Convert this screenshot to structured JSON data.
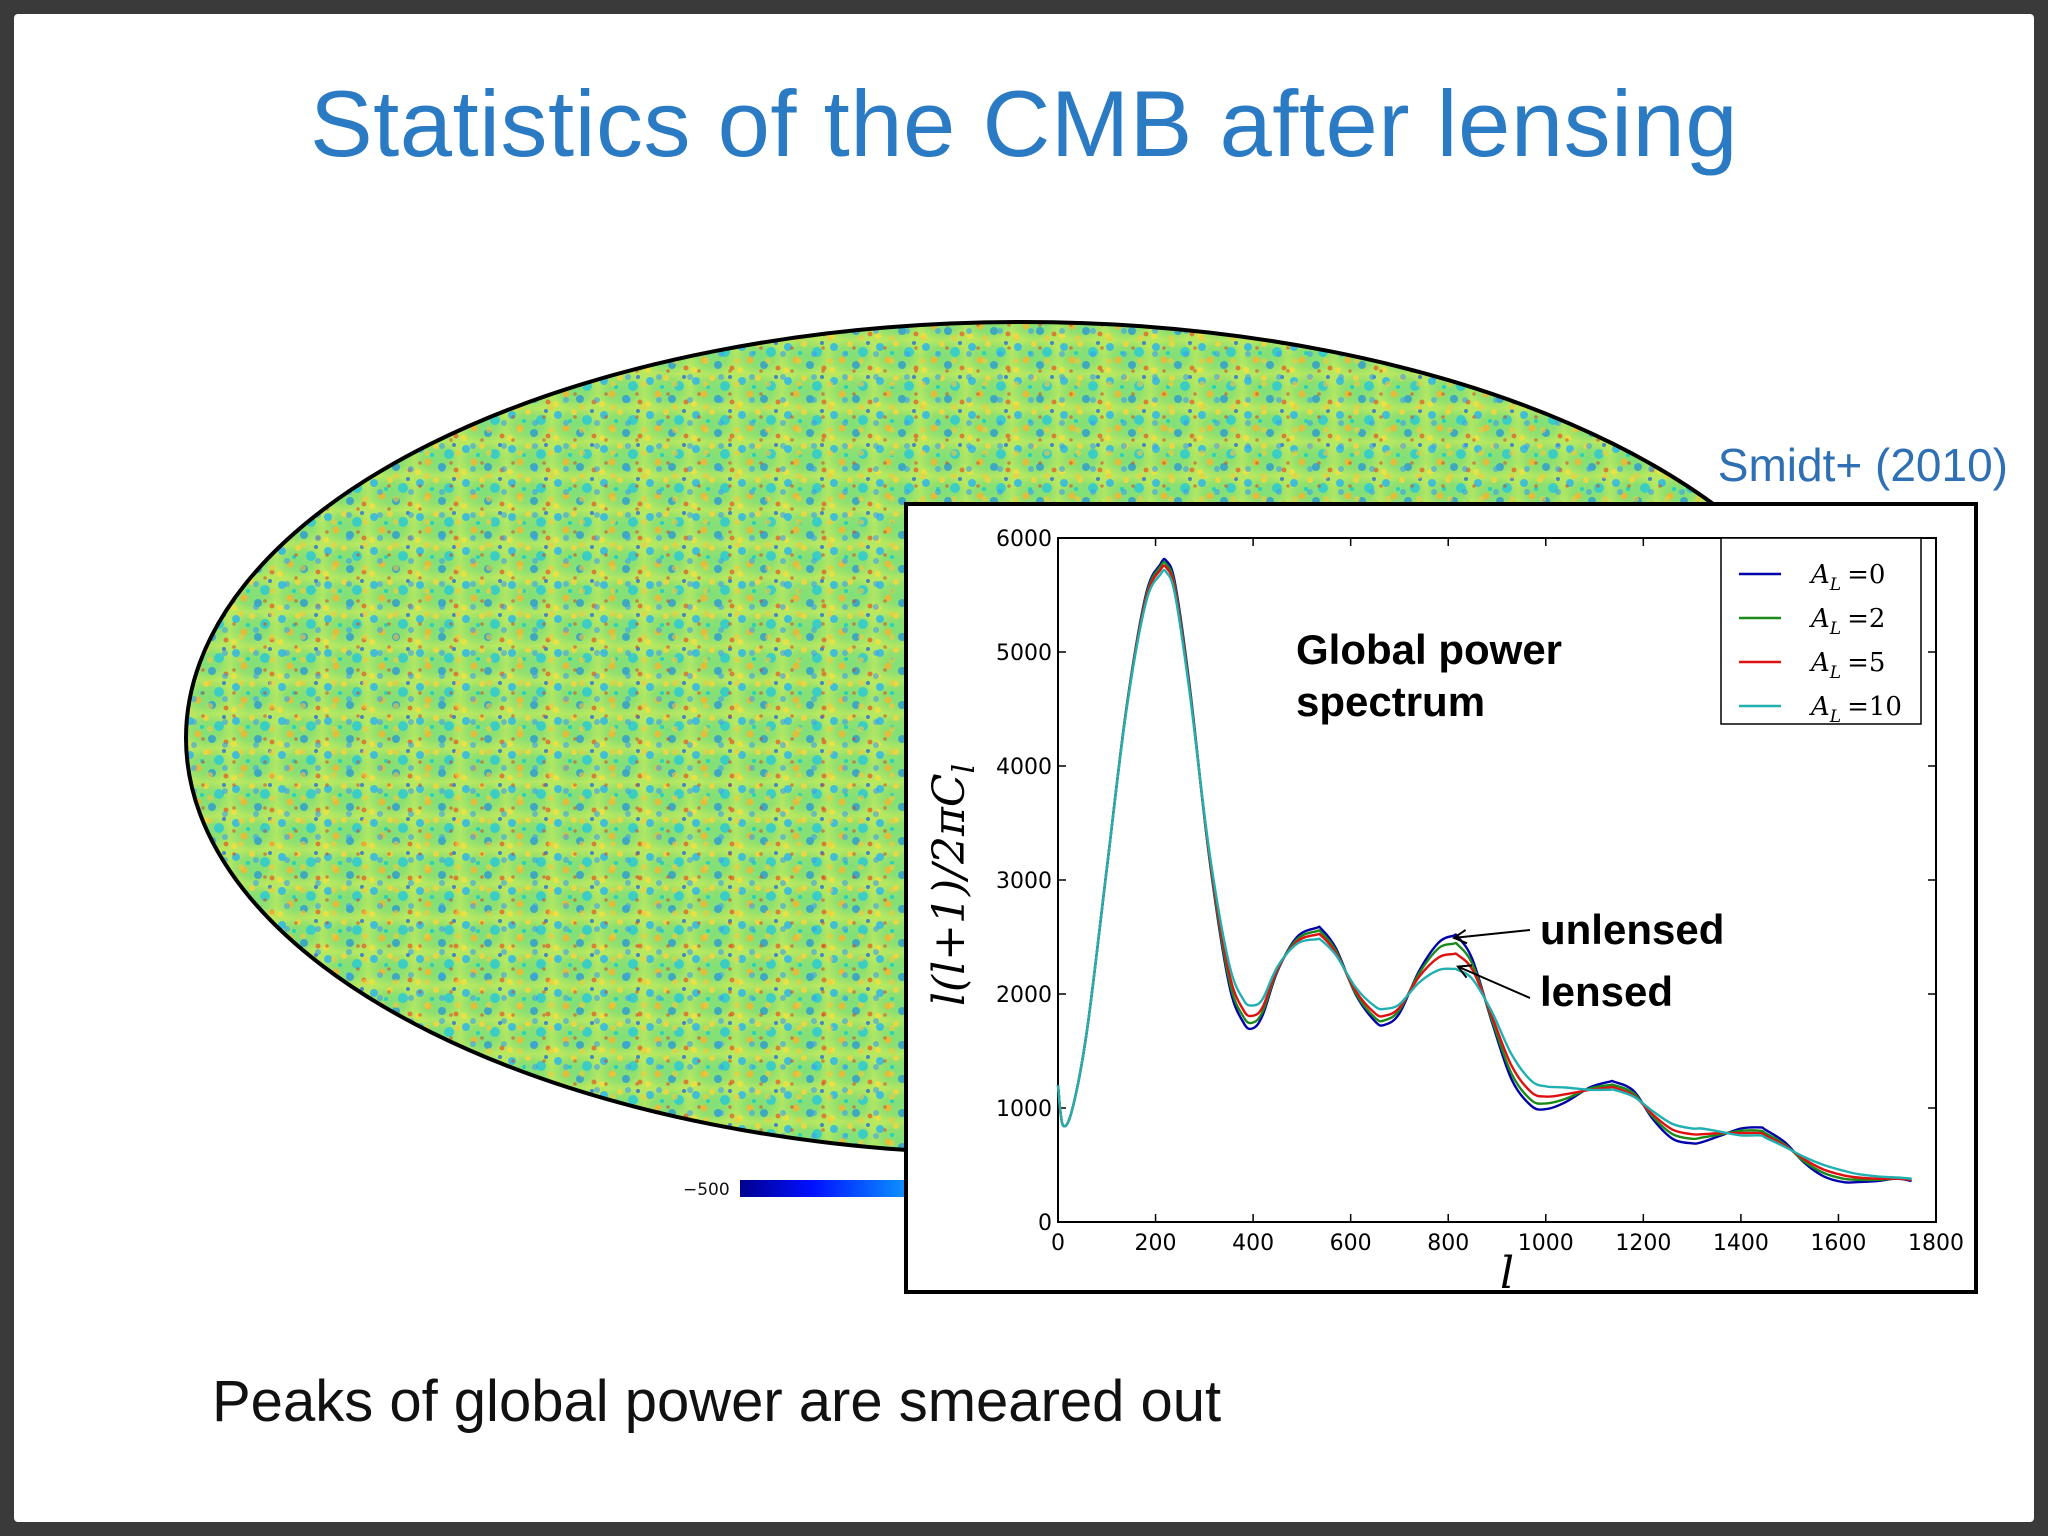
{
  "slide": {
    "title": "Statistics of the CMB after lensing",
    "citation": "Smidt+ (2010)",
    "caption": "Peaks of global power are smeared out",
    "colorbar_min_label": "−500"
  },
  "colors": {
    "title": "#2a7ac4",
    "AL0": "#0000aa",
    "AL2": "#1a8a1a",
    "AL5": "#e01010",
    "AL10": "#20b0b0"
  },
  "chart_data": {
    "type": "line",
    "xlabel": "l",
    "ylabel": "l(l+1)/2πC",
    "ylabel_sub": "l",
    "xlim": [
      0,
      1800
    ],
    "ylim": [
      0,
      6000
    ],
    "xticks": [
      "0",
      "200",
      "400",
      "600",
      "800",
      "1000",
      "1200",
      "1400",
      "1600",
      "1800"
    ],
    "yticks": [
      "0",
      "1000",
      "2000",
      "3000",
      "4000",
      "5000",
      "6000"
    ],
    "legend_position": "top-right",
    "annotations": {
      "global": [
        "Global power",
        "spectrum"
      ],
      "unlensed": "unlensed",
      "lensed": "lensed"
    },
    "series": [
      {
        "name": "A_L =0",
        "label_main": "A",
        "label_sub": "L",
        "label_rest": "=0",
        "x": [
          0,
          10,
          30,
          60,
          100,
          140,
          180,
          210,
          222,
          240,
          270,
          310,
          350,
          380,
          400,
          420,
          450,
          490,
          530,
          540,
          570,
          610,
          650,
          670,
          700,
          740,
          780,
          810,
          820,
          850,
          890,
          930,
          970,
          1000,
          1040,
          1090,
          1130,
          1140,
          1180,
          1220,
          1260,
          1300,
          1320,
          1360,
          1400,
          1440,
          1450,
          1490,
          1530,
          1570,
          1610,
          1640,
          1680,
          1720,
          1750
        ],
        "y": [
          1200,
          850,
          1000,
          1700,
          3100,
          4500,
          5500,
          5770,
          5800,
          5600,
          4700,
          3200,
          2100,
          1750,
          1700,
          1820,
          2200,
          2500,
          2580,
          2570,
          2400,
          2000,
          1760,
          1730,
          1830,
          2200,
          2450,
          2510,
          2500,
          2300,
          1750,
          1250,
          1020,
          990,
          1050,
          1180,
          1230,
          1230,
          1150,
          900,
          730,
          690,
          700,
          760,
          820,
          830,
          810,
          700,
          520,
          400,
          350,
          350,
          360,
          380,
          360
        ]
      },
      {
        "name": "A_L =2",
        "label_main": "A",
        "label_sub": "L",
        "label_rest": "=2",
        "x": [
          0,
          10,
          30,
          60,
          100,
          140,
          180,
          210,
          222,
          240,
          270,
          310,
          350,
          380,
          400,
          420,
          450,
          490,
          530,
          540,
          570,
          610,
          650,
          670,
          700,
          740,
          780,
          810,
          820,
          850,
          890,
          930,
          970,
          1000,
          1040,
          1090,
          1130,
          1140,
          1180,
          1220,
          1260,
          1300,
          1320,
          1360,
          1400,
          1440,
          1450,
          1490,
          1530,
          1570,
          1610,
          1640,
          1680,
          1720,
          1750
        ],
        "y": [
          1200,
          850,
          1000,
          1700,
          3100,
          4500,
          5480,
          5750,
          5770,
          5570,
          4680,
          3210,
          2140,
          1800,
          1750,
          1850,
          2210,
          2480,
          2550,
          2540,
          2380,
          2010,
          1790,
          1770,
          1860,
          2180,
          2400,
          2440,
          2430,
          2260,
          1770,
          1300,
          1070,
          1040,
          1080,
          1170,
          1200,
          1200,
          1130,
          920,
          770,
          730,
          740,
          770,
          800,
          800,
          780,
          680,
          530,
          430,
          380,
          370,
          370,
          380,
          370
        ]
      },
      {
        "name": "A_L =5",
        "label_main": "A",
        "label_sub": "L",
        "label_rest": "=5",
        "x": [
          0,
          10,
          30,
          60,
          100,
          140,
          180,
          210,
          222,
          240,
          270,
          310,
          350,
          380,
          400,
          420,
          450,
          490,
          530,
          540,
          570,
          610,
          650,
          670,
          700,
          740,
          780,
          810,
          820,
          850,
          890,
          930,
          970,
          1000,
          1040,
          1090,
          1130,
          1140,
          1180,
          1220,
          1260,
          1300,
          1320,
          1360,
          1400,
          1440,
          1450,
          1490,
          1530,
          1570,
          1610,
          1640,
          1680,
          1720,
          1750
        ],
        "y": [
          1200,
          850,
          1000,
          1700,
          3100,
          4490,
          5460,
          5720,
          5740,
          5540,
          4660,
          3230,
          2200,
          1860,
          1810,
          1890,
          2220,
          2460,
          2520,
          2510,
          2360,
          2030,
          1830,
          1810,
          1880,
          2150,
          2320,
          2350,
          2340,
          2210,
          1800,
          1370,
          1140,
          1100,
          1120,
          1160,
          1180,
          1180,
          1110,
          940,
          810,
          770,
          770,
          780,
          780,
          780,
          760,
          670,
          550,
          460,
          410,
          390,
          380,
          380,
          370
        ]
      },
      {
        "name": "A_L =10",
        "label_main": "A",
        "label_sub": "L",
        "label_rest": "=10",
        "x": [
          0,
          10,
          30,
          60,
          100,
          140,
          180,
          210,
          222,
          240,
          270,
          310,
          350,
          380,
          400,
          420,
          450,
          490,
          530,
          540,
          570,
          610,
          650,
          670,
          700,
          740,
          780,
          810,
          820,
          850,
          890,
          930,
          970,
          1000,
          1040,
          1090,
          1130,
          1140,
          1180,
          1220,
          1260,
          1300,
          1320,
          1360,
          1400,
          1440,
          1450,
          1490,
          1530,
          1570,
          1610,
          1640,
          1680,
          1720,
          1750
        ],
        "y": [
          1200,
          850,
          1000,
          1700,
          3100,
          4480,
          5430,
          5680,
          5700,
          5500,
          4640,
          3260,
          2280,
          1950,
          1900,
          1960,
          2240,
          2440,
          2480,
          2470,
          2340,
          2060,
          1890,
          1870,
          1910,
          2100,
          2210,
          2220,
          2210,
          2130,
          1840,
          1470,
          1240,
          1190,
          1180,
          1160,
          1160,
          1160,
          1100,
          970,
          860,
          820,
          820,
          790,
          760,
          760,
          740,
          660,
          570,
          500,
          450,
          420,
          400,
          390,
          380
        ]
      }
    ]
  }
}
